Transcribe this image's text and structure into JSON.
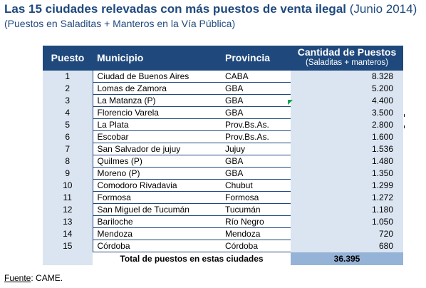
{
  "header": {
    "title": "Las 15 ciudades relevadas con más puestos de venta ilegal",
    "title_date": "(Junio 2014)",
    "subtitle": "(Puestos en Saladitas + Manteros en la Vía Pública)"
  },
  "table": {
    "columns": {
      "puesto": "Puesto",
      "municipio": "Municipio",
      "provincia": "Provincia",
      "cantidad": "Cantidad de Puestos",
      "cantidad_sub": "(Saladitas + manteros)"
    },
    "rows": [
      {
        "puesto": "1",
        "municipio": "Ciudad de Buenos Aires",
        "provincia": "CABA",
        "cantidad": "8.328"
      },
      {
        "puesto": "2",
        "municipio": "Lomas de Zamora",
        "provincia": "GBA",
        "cantidad": "5.200"
      },
      {
        "puesto": "3",
        "municipio": "La Matanza (P)",
        "provincia": "GBA",
        "cantidad": "4.400"
      },
      {
        "puesto": "4",
        "municipio": "Florencio Varela",
        "provincia": "GBA",
        "cantidad": "3.500"
      },
      {
        "puesto": "5",
        "municipio": "La Plata",
        "provincia": "Prov.Bs.As.",
        "cantidad": "2.800"
      },
      {
        "puesto": "6",
        "municipio": "Escobar",
        "provincia": "Prov.Bs.As.",
        "cantidad": "1.600"
      },
      {
        "puesto": "7",
        "municipio": "San Salvador de jujuy",
        "provincia": "Jujuy",
        "cantidad": "1.536"
      },
      {
        "puesto": "8",
        "municipio": "Quilmes (P)",
        "provincia": "GBA",
        "cantidad": "1.480"
      },
      {
        "puesto": "9",
        "municipio": "Moreno (P)",
        "provincia": "GBA",
        "cantidad": "1.350"
      },
      {
        "puesto": "10",
        "municipio": "Comodoro Rivadavia",
        "provincia": "Chubut",
        "cantidad": "1.299"
      },
      {
        "puesto": "11",
        "municipio": "Formosa",
        "provincia": "Formosa",
        "cantidad": "1.272"
      },
      {
        "puesto": "12",
        "municipio": "San Miguel de Tucumán",
        "provincia": "Tucumán",
        "cantidad": "1.180"
      },
      {
        "puesto": "13",
        "municipio": "Bariloche",
        "provincia": "Río Negro",
        "cantidad": "1.050"
      },
      {
        "puesto": "14",
        "municipio": "Mendoza",
        "provincia": "Mendoza",
        "cantidad": "720"
      },
      {
        "puesto": "15",
        "municipio": "Córdoba",
        "provincia": "Córdoba",
        "cantidad": "680"
      }
    ],
    "total_label": "Total de puestos en estas ciudades",
    "total_value": "36.395"
  },
  "footer": {
    "source_label": "Fuente",
    "source_value": ": CAME."
  },
  "colors": {
    "header_bg": "#1f497d",
    "row_bg": "#dbe5f1",
    "total_bg": "#95b3d7",
    "title_text": "#1f497d"
  }
}
